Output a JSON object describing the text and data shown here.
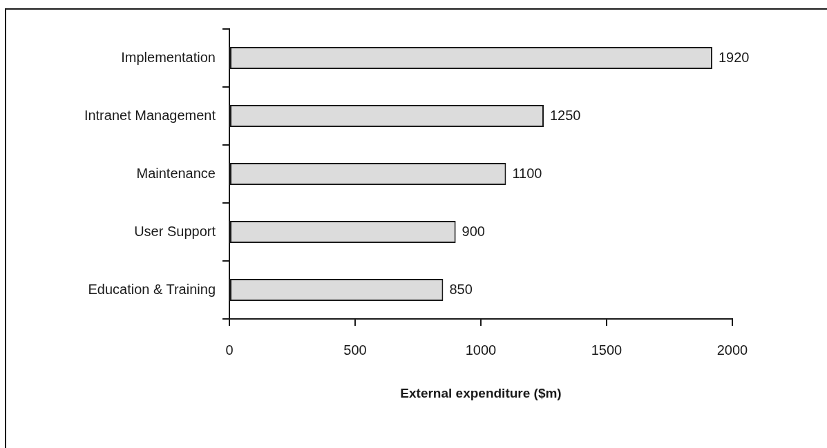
{
  "chart_data": {
    "type": "bar",
    "orientation": "horizontal",
    "xlabel": "External expenditure ($m)",
    "categories": [
      "Implementation",
      "Intranet Management",
      "Maintenance",
      "User Support",
      "Education & Training"
    ],
    "values": [
      1920,
      1250,
      1100,
      900,
      850
    ],
    "color": "#dcdcdc",
    "xlim": [
      0,
      2000
    ],
    "xticks": [
      0,
      500,
      1000,
      1500,
      2000
    ],
    "data_labels": true,
    "legend": false,
    "grid": false
  }
}
